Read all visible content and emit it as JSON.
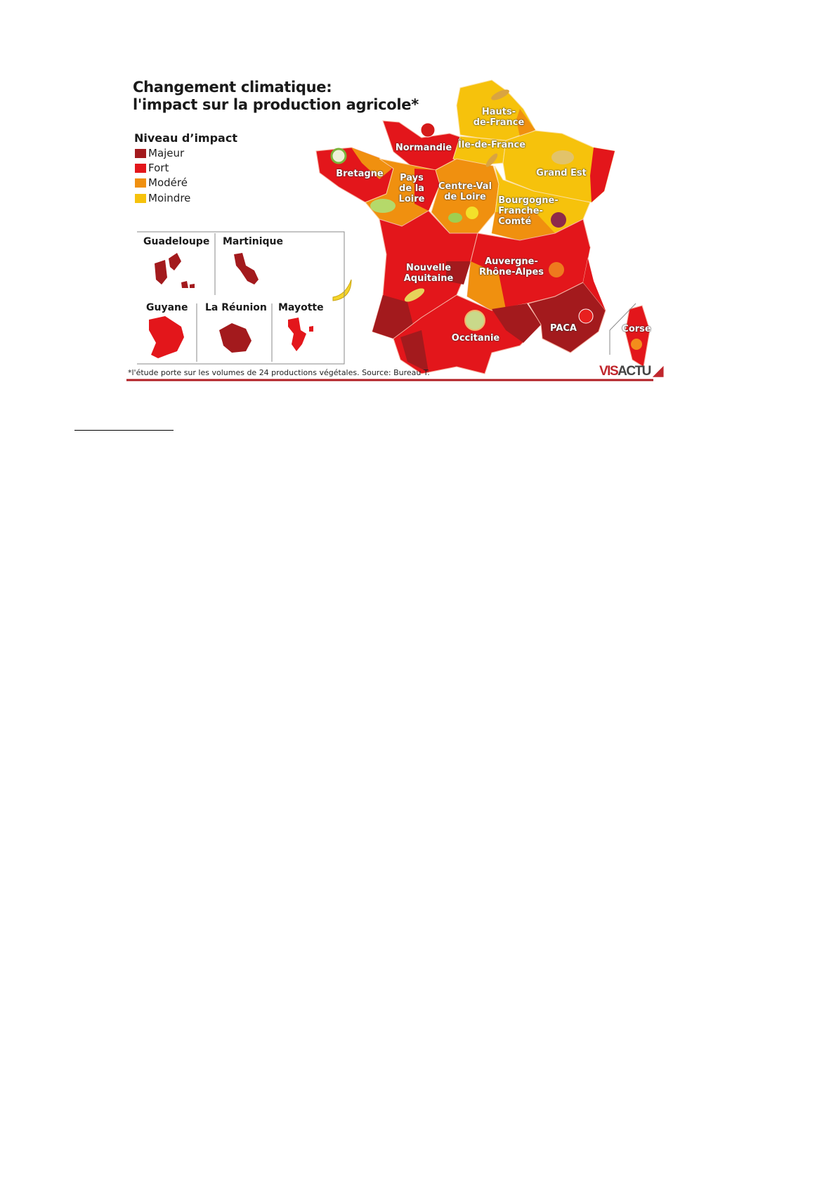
{
  "title": {
    "line1": "Changement climatique:",
    "line2": "l'impact sur la production agricole*"
  },
  "legend": {
    "title": "Niveau d’impact",
    "items": [
      {
        "label": "Majeur",
        "color": "#a31a1d"
      },
      {
        "label": "Fort",
        "color": "#e3161b"
      },
      {
        "label": "Modéré",
        "color": "#f0900f"
      },
      {
        "label": "Moindre",
        "color": "#f6c20c"
      }
    ]
  },
  "regions": [
    {
      "name": "Hauts-de-France",
      "label": "Hauts-\nde-France",
      "impact": "Moindre",
      "icon": "wheat-icon"
    },
    {
      "name": "Normandie",
      "label": "Normandie",
      "impact": "Fort",
      "icon": "apple-icon"
    },
    {
      "name": "Île-de-France",
      "label": "Île-de-France",
      "impact": "Moindre",
      "icon": "wheat-icon"
    },
    {
      "name": "Bretagne",
      "label": "Bretagne",
      "impact": "Fort",
      "icon": "cauliflower-icon"
    },
    {
      "name": "Grand Est",
      "label": "Grand Est",
      "impact": "Moindre",
      "icon": "potato-icon"
    },
    {
      "name": "Pays de la Loire",
      "label": "Pays\nde la\nLoire",
      "impact": "Modéré",
      "icon": "lettuce-icon"
    },
    {
      "name": "Centre-Val de Loire",
      "label": "Centre-Val\nde Loire",
      "impact": "Modéré",
      "icon": "rapeseed-icon"
    },
    {
      "name": "Bourgogne-Franche-Comté",
      "label": "Bourgogne-\nFranche-\nComté",
      "impact": "Moindre",
      "icon": "grapes-icon"
    },
    {
      "name": "Nouvelle Aquitaine",
      "label": "Nouvelle\nAquitaine",
      "impact": "Fort",
      "icon": "corn-icon"
    },
    {
      "name": "Auvergne-Rhône-Alpes",
      "label": "Auvergne-\nRhône-Alpes",
      "impact": "Fort",
      "icon": "pumpkin-icon"
    },
    {
      "name": "Occitanie",
      "label": "Occitanie",
      "impact": "Fort",
      "icon": "melon-icon"
    },
    {
      "name": "PACA",
      "label": "PACA",
      "impact": "Majeur",
      "icon": "tomato-icon"
    },
    {
      "name": "Corse",
      "label": "Corse",
      "impact": "Fort",
      "icon": "orange-icon"
    }
  ],
  "insets": [
    {
      "label": "Guadeloupe",
      "impact": "Majeur"
    },
    {
      "label": "Martinique",
      "impact": "Majeur"
    },
    {
      "label": "Guyane",
      "impact": "Fort"
    },
    {
      "label": "La Réunion",
      "impact": "Majeur"
    },
    {
      "label": "Mayotte",
      "impact": "Fort"
    }
  ],
  "inset_icon": "banana-icon",
  "footnote": "*l'étude porte sur les volumes de 24 productions végétales. Source: Bureau T.",
  "logo": {
    "part1": "VIS",
    "part2": "ACTU",
    "color": "#c0262c"
  }
}
